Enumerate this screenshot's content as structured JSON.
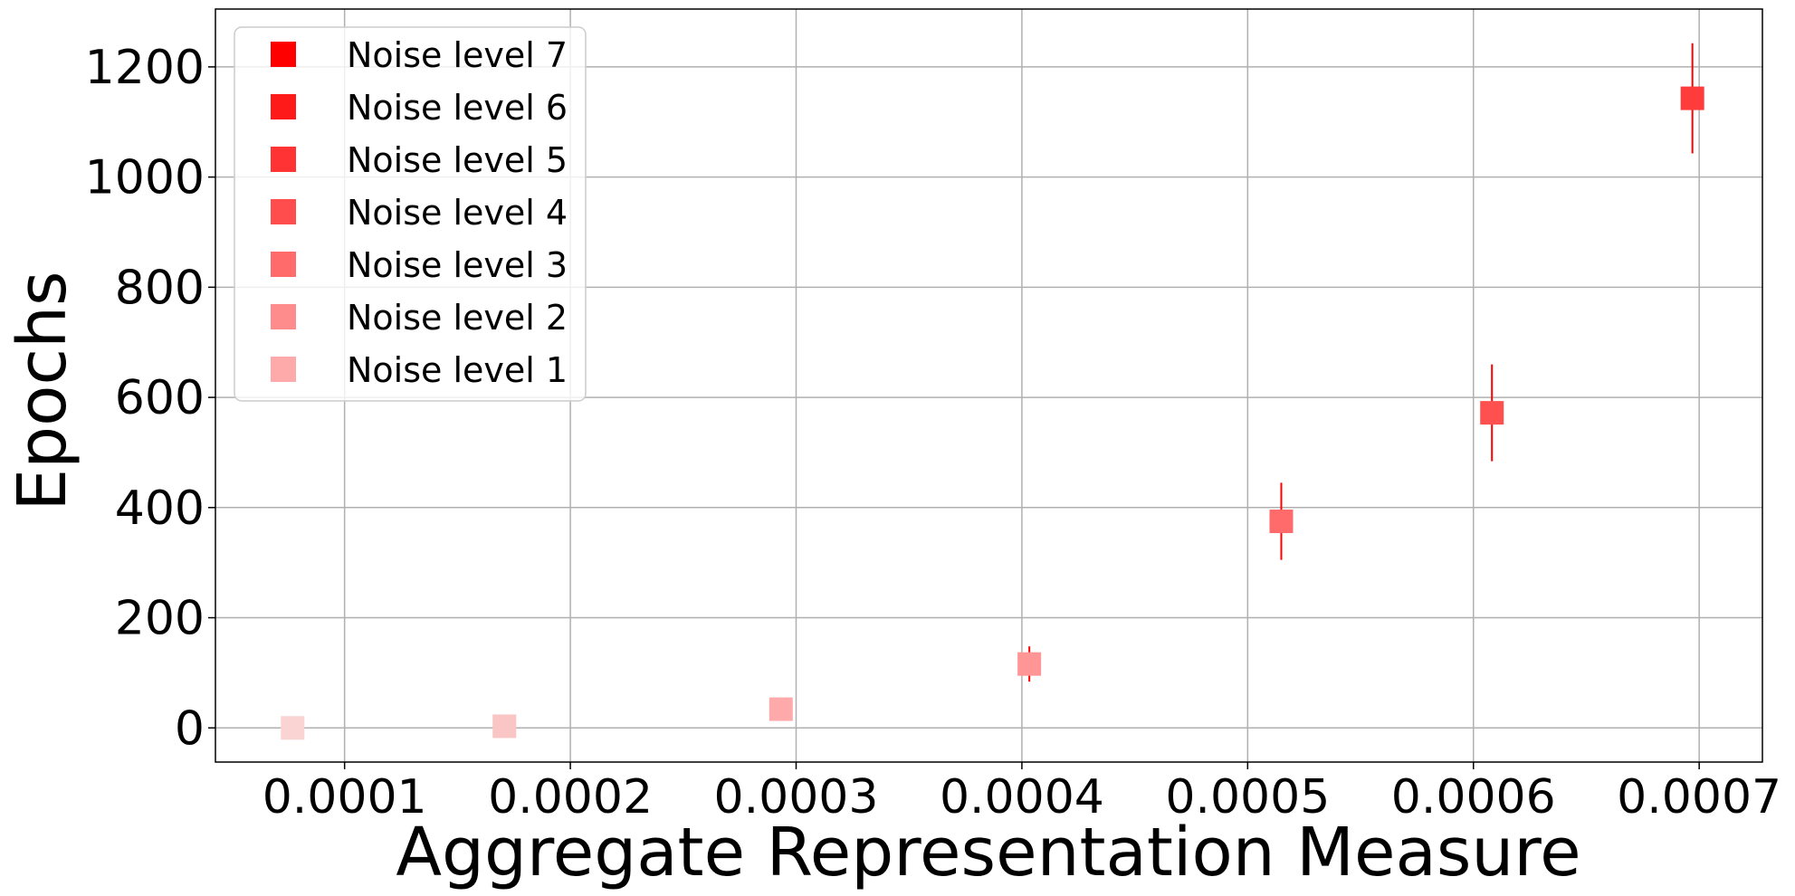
{
  "chart_data": {
    "type": "scatter",
    "title": "",
    "xlabel": "Aggregate Representation Measure",
    "ylabel": "Epochs",
    "xlim": [
      4.28e-05,
      0.000728
    ],
    "ylim": [
      -62,
      1305
    ],
    "grid": true,
    "legend_placement": "upper-left",
    "x_ticks": [
      0.0001,
      0.0002,
      0.0003,
      0.0004,
      0.0005,
      0.0006,
      0.0007
    ],
    "x_tick_labels": [
      "0.0001",
      "0.0002",
      "0.0003",
      "0.0004",
      "0.0005",
      "0.0006",
      "0.0007"
    ],
    "y_ticks": [
      0,
      200,
      400,
      600,
      800,
      1000,
      1200
    ],
    "y_tick_labels": [
      "0",
      "200",
      "400",
      "600",
      "800",
      "1000",
      "1200"
    ],
    "points": [
      {
        "x": 7.7e-05,
        "y": 0,
        "err": 0,
        "color": "#fad3d3"
      },
      {
        "x": 0.0001708,
        "y": 3,
        "err": 0,
        "color": "#f9c5c5"
      },
      {
        "x": 0.0002933,
        "y": 34,
        "err": 0,
        "color": "#ffaaaa"
      },
      {
        "x": 0.0004033,
        "y": 116,
        "err": 32,
        "color": "#ff9696"
      },
      {
        "x": 0.0005149,
        "y": 375,
        "err": 70,
        "color": "#ff6a6a"
      },
      {
        "x": 0.0006082,
        "y": 572,
        "err": 88,
        "color": "#ff5050"
      },
      {
        "x": 0.000697,
        "y": 1143,
        "err": 100,
        "color": "#ff3c3c"
      }
    ],
    "errorbar_color": "#ff0000",
    "legend": [
      {
        "label": "Noise level 7",
        "color": "#ff0000"
      },
      {
        "label": "Noise level 6",
        "color": "#ff1a1a"
      },
      {
        "label": "Noise level 5",
        "color": "#ff3333"
      },
      {
        "label": "Noise level 4",
        "color": "#ff4d4d"
      },
      {
        "label": "Noise level 3",
        "color": "#ff6b6b"
      },
      {
        "label": "Noise level 2",
        "color": "#ff8c8c"
      },
      {
        "label": "Noise level 1",
        "color": "#ffaaaa"
      }
    ]
  }
}
